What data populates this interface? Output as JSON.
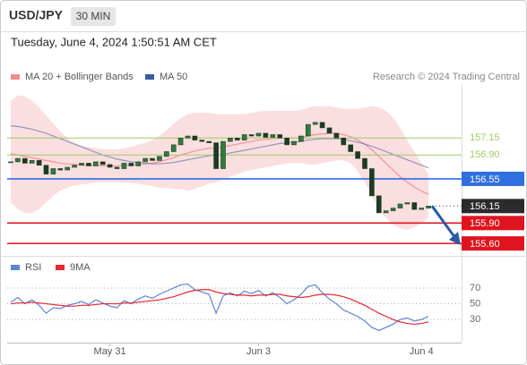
{
  "header": {
    "symbol": "USD/JPY",
    "interval": "30 MIN",
    "timestamp": "Tuesday, June 4, 2024 1:50:51 AM CET",
    "credit": "Research © 2024 Trading Central"
  },
  "chart_data": [
    {
      "type": "candlestick",
      "ylim": [
        155.47,
        157.93
      ],
      "up_color": "#2e7d3a",
      "down_color": "#1d3b22",
      "close": [
        156.8,
        156.85,
        156.78,
        156.82,
        156.75,
        156.62,
        156.7,
        156.68,
        156.72,
        156.75,
        156.78,
        156.74,
        156.8,
        156.76,
        156.72,
        156.7,
        156.78,
        156.74,
        156.8,
        156.85,
        156.82,
        156.88,
        156.95,
        157.05,
        157.15,
        157.18,
        157.12,
        157.1,
        157.08,
        156.7,
        157.1,
        157.15,
        157.12,
        157.2,
        157.18,
        157.22,
        157.16,
        157.2,
        157.15,
        157.05,
        157.1,
        157.18,
        157.35,
        157.38,
        157.3,
        157.22,
        157.15,
        157.05,
        156.95,
        156.85,
        156.7,
        156.3,
        156.05,
        156.08,
        156.12,
        156.18,
        156.2,
        156.1,
        156.12,
        156.15
      ],
      "series": [
        {
          "name": "MA 20 + Bollinger Bands",
          "color": "#f28b8e",
          "band_color": "#f9d3d4",
          "values": [
            156.92,
            156.9,
            156.88,
            156.86,
            156.84,
            156.82,
            156.8,
            156.78,
            156.77,
            156.76,
            156.75,
            156.75,
            156.75,
            156.74,
            156.74,
            156.74,
            156.75,
            156.75,
            156.76,
            156.77,
            156.78,
            156.8,
            156.83,
            156.86,
            156.9,
            156.93,
            156.96,
            156.98,
            157.0,
            157.0,
            157.02,
            157.04,
            157.06,
            157.08,
            157.1,
            157.12,
            157.13,
            157.14,
            157.15,
            157.15,
            157.15,
            157.16,
            157.18,
            157.2,
            157.21,
            157.22,
            157.22,
            157.2,
            157.17,
            157.12,
            157.06,
            156.98,
            156.88,
            156.78,
            156.68,
            156.58,
            156.5,
            156.43,
            156.37,
            156.32
          ],
          "upper": [
            157.7,
            157.78,
            157.76,
            157.7,
            157.6,
            157.48,
            157.36,
            157.25,
            157.15,
            157.08,
            157.04,
            157.02,
            157.0,
            156.99,
            156.98,
            156.98,
            157.0,
            157.02,
            157.05,
            157.08,
            157.12,
            157.18,
            157.26,
            157.36,
            157.44,
            157.5,
            157.52,
            157.52,
            157.52,
            157.5,
            157.5,
            157.5,
            157.5,
            157.5,
            157.52,
            157.54,
            157.55,
            157.55,
            157.55,
            157.55,
            157.55,
            157.56,
            157.6,
            157.62,
            157.62,
            157.62,
            157.6,
            157.58,
            157.58,
            157.58,
            157.6,
            157.62,
            157.6,
            157.55,
            157.45,
            157.3,
            157.12,
            156.95,
            156.78,
            156.62
          ],
          "lower": [
            156.2,
            156.1,
            156.05,
            156.05,
            156.1,
            156.2,
            156.3,
            156.38,
            156.42,
            156.45,
            156.47,
            156.48,
            156.5,
            156.5,
            156.5,
            156.5,
            156.5,
            156.49,
            156.48,
            156.46,
            156.44,
            156.42,
            156.42,
            156.4,
            156.4,
            156.38,
            156.4,
            156.44,
            156.48,
            156.5,
            156.54,
            156.58,
            156.62,
            156.66,
            156.68,
            156.7,
            156.72,
            156.74,
            156.76,
            156.78,
            156.78,
            156.78,
            156.76,
            156.76,
            156.78,
            156.8,
            156.82,
            156.82,
            156.78,
            156.66,
            156.5,
            156.3,
            156.1,
            155.98,
            155.88,
            155.82,
            155.8,
            155.84,
            155.9,
            155.98
          ]
        },
        {
          "name": "MA 50",
          "color": "#3b5da3",
          "values": [
            157.33,
            157.32,
            157.3,
            157.28,
            157.25,
            157.22,
            157.18,
            157.14,
            157.1,
            157.06,
            157.02,
            156.98,
            156.94,
            156.9,
            156.87,
            156.84,
            156.82,
            156.8,
            156.79,
            156.78,
            156.77,
            156.77,
            156.78,
            156.79,
            156.81,
            156.83,
            156.85,
            156.87,
            156.89,
            156.9,
            156.91,
            156.93,
            156.95,
            156.97,
            156.99,
            157.01,
            157.03,
            157.05,
            157.07,
            157.08,
            157.09,
            157.1,
            157.12,
            157.13,
            157.14,
            157.14,
            157.14,
            157.13,
            157.11,
            157.09,
            157.06,
            157.03,
            156.99,
            156.95,
            156.91,
            156.87,
            156.83,
            156.79,
            156.75,
            156.71
          ]
        }
      ],
      "levels": [
        {
          "value": 157.15,
          "color": "#9ccc65",
          "style": "text"
        },
        {
          "value": 156.9,
          "label": "156.90",
          "color": "#9ccc65",
          "style": "text"
        },
        {
          "value": 156.55,
          "color": "#2f6fe0",
          "style": "box"
        },
        {
          "value": 156.15,
          "color": "#2b2b2b",
          "style": "last"
        },
        {
          "value": 155.9,
          "label": "155.90",
          "color": "#e0141e",
          "style": "box"
        },
        {
          "value": 155.6,
          "label": "155.60",
          "color": "#e0141e",
          "style": "box"
        }
      ]
    },
    {
      "type": "line",
      "ylim": [
        4,
        95
      ],
      "yticks": [
        70,
        50,
        30
      ],
      "categories": [
        null,
        null,
        null,
        null,
        null,
        null,
        null,
        null,
        null,
        null,
        null,
        null,
        null,
        null,
        "May 31",
        null,
        null,
        null,
        null,
        null,
        null,
        null,
        null,
        null,
        null,
        null,
        null,
        null,
        null,
        null,
        null,
        null,
        null,
        null,
        null,
        "Jun 3",
        null,
        null,
        null,
        null,
        null,
        null,
        null,
        null,
        null,
        null,
        null,
        null,
        null,
        null,
        null,
        null,
        null,
        null,
        null,
        null,
        null,
        null,
        "Jun 4",
        null
      ],
      "series": [
        {
          "name": "RSI",
          "color": "#5b84d9",
          "values": [
            52,
            58,
            50,
            55,
            48,
            38,
            45,
            44,
            48,
            50,
            53,
            49,
            55,
            51,
            47,
            45,
            54,
            50,
            56,
            60,
            57,
            62,
            66,
            70,
            74,
            75,
            68,
            65,
            62,
            38,
            60,
            64,
            60,
            66,
            63,
            67,
            60,
            64,
            58,
            50,
            55,
            62,
            72,
            74,
            64,
            56,
            50,
            42,
            38,
            34,
            28,
            20,
            16,
            20,
            24,
            30,
            32,
            28,
            30,
            34
          ]
        },
        {
          "name": "9MA",
          "color": "#e8262b",
          "values": [
            50,
            51,
            51,
            52,
            51,
            50,
            49,
            48,
            47,
            47,
            48,
            48,
            49,
            50,
            50,
            50,
            51,
            51,
            52,
            53,
            54,
            55,
            57,
            59,
            62,
            65,
            67,
            68,
            68,
            65,
            63,
            62,
            61,
            61,
            60,
            61,
            61,
            62,
            62,
            60,
            59,
            58,
            59,
            61,
            62,
            62,
            61,
            59,
            56,
            52,
            48,
            43,
            38,
            34,
            30,
            27,
            25,
            24,
            25,
            27
          ]
        }
      ]
    }
  ]
}
